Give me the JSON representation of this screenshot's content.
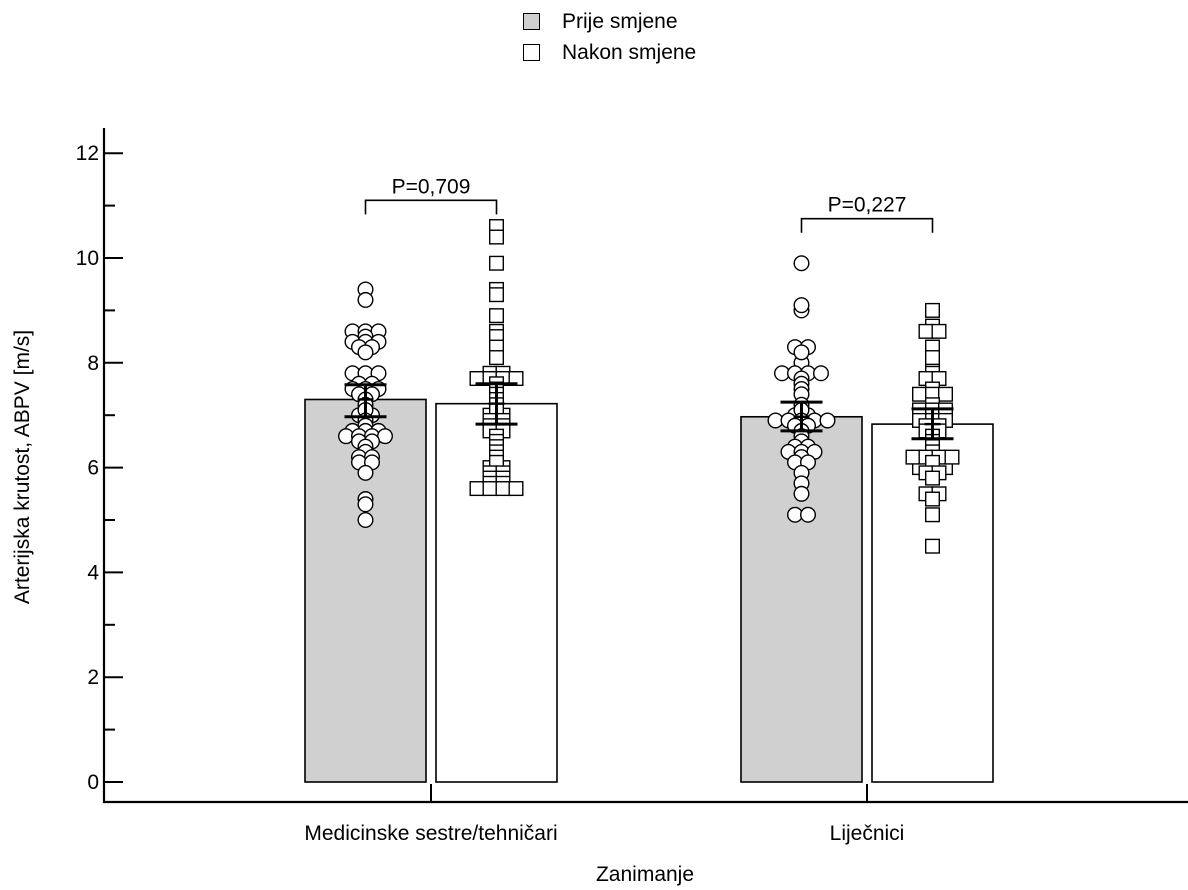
{
  "chart_data": {
    "type": "bar",
    "xlabel": "Zanimanje",
    "ylabel": "Arterijska krutost, ABPV [m/s]",
    "ylim": [
      0,
      12
    ],
    "yticks": [
      0,
      2,
      4,
      6,
      8,
      10,
      12
    ],
    "grid": false,
    "legend_placement": "top-center",
    "categories": [
      "Medicinske sestre/tehničari",
      "Liječnici"
    ],
    "series": [
      {
        "name": "Prije smjene",
        "color": "#d0d0d0",
        "marker": "circle",
        "values": [
          7.3,
          6.97
        ],
        "ci": [
          [
            6.97,
            7.58
          ],
          [
            6.7,
            7.25
          ]
        ],
        "points": [
          [
            9.4,
            9.2,
            8.6,
            8.6,
            8.6,
            8.5,
            8.4,
            8.4,
            8.4,
            8.3,
            8.3,
            8.2,
            7.8,
            7.8,
            7.8,
            7.6,
            7.6,
            7.5,
            7.5,
            7.5,
            7.4,
            7.4,
            7.3,
            7.2,
            7.1,
            7.0,
            7.0,
            6.9,
            6.8,
            6.7,
            6.7,
            6.7,
            6.6,
            6.6,
            6.6,
            6.6,
            6.5,
            6.5,
            6.4,
            6.3,
            6.2,
            6.2,
            6.1,
            6.1,
            5.9,
            5.4,
            5.3,
            5.0
          ],
          [
            9.9,
            9.1,
            9.0,
            8.3,
            8.3,
            8.2,
            8.0,
            7.8,
            7.8,
            7.8,
            7.8,
            7.7,
            7.6,
            7.5,
            7.4,
            7.2,
            7.1,
            7.0,
            7.0,
            6.9,
            6.9,
            6.9,
            6.9,
            6.9,
            6.8,
            6.8,
            6.7,
            6.6,
            6.5,
            6.4,
            6.4,
            6.3,
            6.3,
            6.3,
            6.2,
            6.1,
            6.1,
            6.0,
            5.9,
            5.7,
            5.5,
            5.1,
            5.1
          ]
        ]
      },
      {
        "name": "Nakon smjene",
        "color": "#ffffff",
        "marker": "square",
        "values": [
          7.22,
          6.83
        ],
        "ci": [
          [
            6.83,
            7.6
          ],
          [
            6.55,
            7.12
          ]
        ],
        "points": [
          [
            10.6,
            10.4,
            9.9,
            9.4,
            9.3,
            8.9,
            8.6,
            8.5,
            8.3,
            8.1,
            7.8,
            7.8,
            7.7,
            7.7,
            7.7,
            7.7,
            7.6,
            7.5,
            7.4,
            7.3,
            7.2,
            7.1,
            7.0,
            7.0,
            6.9,
            6.9,
            6.8,
            6.8,
            6.7,
            6.7,
            6.6,
            6.5,
            6.4,
            6.3,
            6.2,
            6.1,
            6.0,
            6.0,
            5.9,
            5.9,
            5.8,
            5.8,
            5.7,
            5.7,
            5.6,
            5.6,
            5.6,
            5.6
          ],
          [
            9.0,
            8.7,
            8.6,
            8.6,
            8.3,
            8.1,
            8.0,
            7.8,
            7.7,
            7.7,
            7.5,
            7.4,
            7.4,
            7.4,
            7.2,
            7.1,
            7.1,
            7.1,
            7.0,
            7.0,
            6.9,
            6.9,
            6.9,
            6.8,
            6.8,
            6.7,
            6.7,
            6.6,
            6.5,
            6.4,
            6.3,
            6.2,
            6.2,
            6.2,
            6.2,
            6.1,
            6.0,
            6.0,
            6.0,
            5.9,
            5.9,
            5.8,
            5.5,
            5.5,
            5.4,
            5.1,
            4.5
          ]
        ]
      }
    ],
    "annotations": [
      {
        "text": "P=0,709",
        "category": 0,
        "bracket_y": 11.1
      },
      {
        "text": "P=0,227",
        "category": 1,
        "bracket_y": 10.75
      }
    ]
  }
}
